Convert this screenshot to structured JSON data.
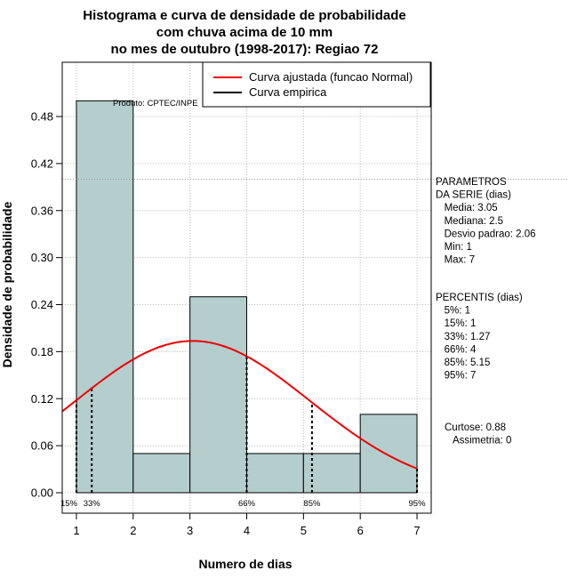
{
  "chart_data": {
    "type": "bar",
    "title": [
      "Histograma e curva de densidade de probabilidade",
      "com chuva acima de 10 mm",
      "no mes de outubro (1998-2017): Regiao 72"
    ],
    "xlabel": "Numero de dias",
    "ylabel": "Densidade de probabilidade",
    "xlim": [
      0.75,
      7.25
    ],
    "ylim": [
      0,
      0.54
    ],
    "x_ticks": [
      1,
      2,
      3,
      4,
      5,
      6,
      7
    ],
    "y_ticks": [
      0.0,
      0.06,
      0.12,
      0.18,
      0.24,
      0.3,
      0.36,
      0.42,
      0.48
    ],
    "y_tick_labels": [
      "0.00",
      "0.06",
      "0.12",
      "0.18",
      "0.24",
      "0.30",
      "0.36",
      "0.42",
      "0.48"
    ],
    "grid": true,
    "bins": [
      {
        "x0": 1,
        "x1": 2,
        "value": 0.5
      },
      {
        "x0": 2,
        "x1": 3,
        "value": 0.05
      },
      {
        "x0": 3,
        "x1": 4,
        "value": 0.25
      },
      {
        "x0": 4,
        "x1": 5,
        "value": 0.05
      },
      {
        "x0": 5,
        "x1": 6,
        "value": 0.05
      },
      {
        "x0": 6,
        "x1": 7,
        "value": 0.1
      }
    ],
    "bar_color": "#b4cdcd",
    "normal_fit": {
      "mean": 3.05,
      "sd": 2.06,
      "color": "#ee0000"
    },
    "reference_line_y": 0.4,
    "percentile_lines": [
      {
        "label": "15%",
        "x": 1.0
      },
      {
        "label": "33%",
        "x": 1.27
      },
      {
        "label": "66%",
        "x": 4.0
      },
      {
        "label": "85%",
        "x": 5.15
      },
      {
        "label": "95%",
        "x": 7.0
      }
    ],
    "legend": {
      "position": "top-right",
      "entries": [
        {
          "label": "Curva ajustada (funcao Normal)",
          "color": "#ee0000"
        },
        {
          "label": "Curva empirica",
          "color": "#000000"
        }
      ]
    },
    "product_note": "Produto: CPTEC/INPE"
  },
  "side_panel": {
    "parametros": [
      "PARAMETROS",
      "DA SERIE (dias)",
      "   Media: 3.05",
      "   Mediana: 2.5",
      "   Desvio padrao: 2.06",
      "   Min: 1",
      "   Max: 7"
    ],
    "percentis": [
      "PERCENTIS (dias)",
      "   5%: 1",
      "   15%: 1",
      "   33%: 1.27",
      "   66%: 4",
      "   85%: 5.15",
      "   95%: 7"
    ],
    "shape": [
      "Curtose: 0.88",
      "   Assimetria: 0"
    ]
  }
}
